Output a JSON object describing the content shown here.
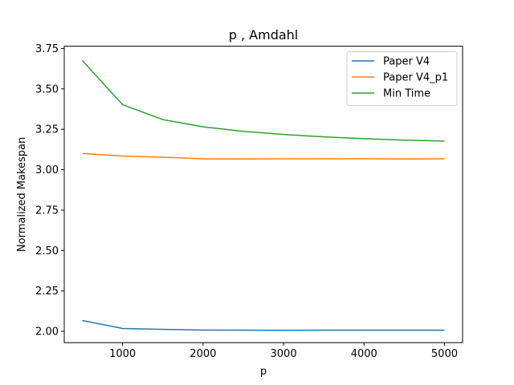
{
  "chart_data": {
    "type": "line",
    "title": "p , Amdahl",
    "xlabel": "p",
    "ylabel": "Normalized Makespan",
    "xlim": [
      275,
      5225
    ],
    "ylim": [
      1.93,
      3.764
    ],
    "xticks": [
      "1000",
      "2000",
      "3000",
      "4000",
      "5000"
    ],
    "yticks": [
      "2.00",
      "2.25",
      "2.50",
      "2.75",
      "3.00",
      "3.25",
      "3.50",
      "3.75"
    ],
    "grid": false,
    "legend_position": "top-right",
    "x": [
      500,
      1000,
      1500,
      2000,
      2500,
      3000,
      3500,
      4000,
      4500,
      5000
    ],
    "series": [
      {
        "name": "Paper V4",
        "color": "#1f77b4",
        "values": [
          2.067,
          2.018,
          2.012,
          2.008,
          2.007,
          2.006,
          2.007,
          2.007,
          2.007,
          2.007
        ]
      },
      {
        "name": "Paper V4_p1",
        "color": "#ff7f0e",
        "values": [
          3.1,
          3.085,
          3.077,
          3.067,
          3.066,
          3.067,
          3.067,
          3.068,
          3.066,
          3.067
        ]
      },
      {
        "name": "Min Time",
        "color": "#2ca02c",
        "values": [
          3.675,
          3.402,
          3.31,
          3.265,
          3.237,
          3.218,
          3.203,
          3.192,
          3.183,
          3.177
        ]
      }
    ]
  }
}
